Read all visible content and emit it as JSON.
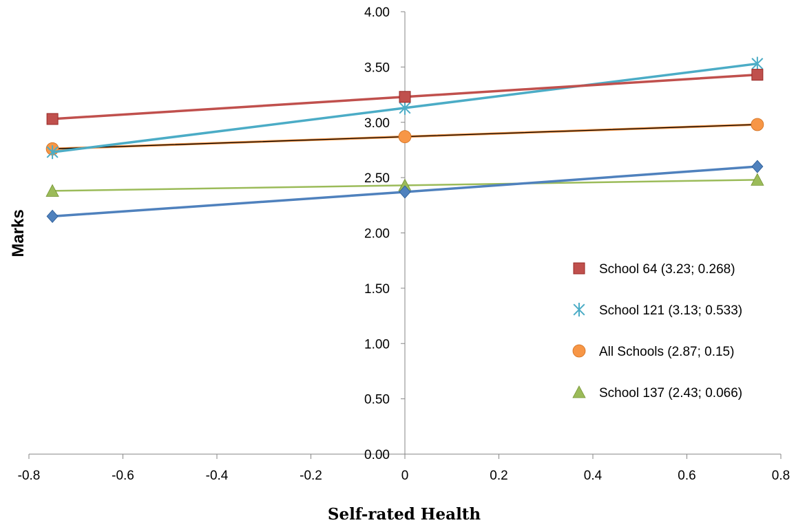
{
  "chart_data": {
    "type": "line",
    "xlabel": "Self-rated Health",
    "ylabel": "Marks",
    "xlim": [
      -0.8,
      0.8
    ],
    "ylim": [
      0,
      4
    ],
    "x_ticks": [
      "-0.8",
      "-0.6",
      "-0.4",
      "-0.2",
      "0",
      "0.2",
      "0.4",
      "0.6",
      "0.8"
    ],
    "y_ticks": [
      "0.00",
      "0.50",
      "1.00",
      "1.50",
      "2.00",
      "2.50",
      "3.00",
      "3.50",
      "4.00"
    ],
    "x": [
      -0.75,
      0,
      0.75
    ],
    "grid": false,
    "legend_position": "right",
    "series": [
      {
        "name": "School 64 (3.23; 0.268)",
        "values": [
          3.03,
          3.23,
          3.43
        ],
        "color": "#c0504d",
        "marker": "square",
        "in_legend": true
      },
      {
        "name": "School 121 (3.13; 0.533)",
        "values": [
          2.73,
          3.13,
          3.53
        ],
        "color": "#4bacc6",
        "marker": "asterisk",
        "in_legend": true
      },
      {
        "name": "All Schools (2.87; 0.15)",
        "values": [
          2.76,
          2.87,
          2.98
        ],
        "color": "#f79646",
        "marker": "circle",
        "trend_color": "#000000",
        "in_legend": true
      },
      {
        "name": "School 137 (2.43; 0.066)",
        "values": [
          2.38,
          2.43,
          2.48
        ],
        "color": "#9bbb59",
        "marker": "triangle",
        "in_legend": true
      },
      {
        "name": "",
        "values": [
          2.15,
          2.37,
          2.6
        ],
        "color": "#4f81bd",
        "marker": "diamond",
        "in_legend": false
      }
    ]
  }
}
